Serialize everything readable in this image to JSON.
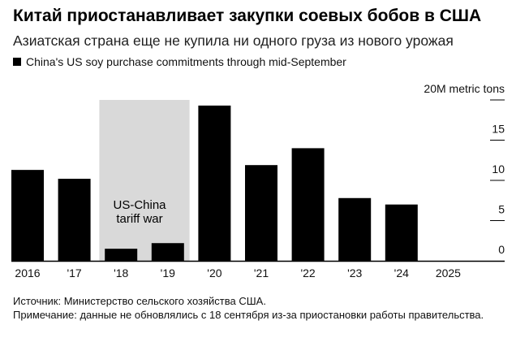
{
  "header": {
    "title": "Китай приостанавливает закупки соевых бобов в США",
    "subtitle": "Азиатская страна еще не купила ни одного груза из нового урожая"
  },
  "footer": {
    "source": "Источник: Министерство сельского хозяйства США.",
    "note": "Примечание: данные не обновлялись с 18 сентября из-за приостановки работы правительства."
  },
  "colors": {
    "bar": "#000000",
    "highlight": "#d9d9d9",
    "grid": "#000000"
  },
  "chart_data": {
    "type": "bar",
    "title": "China's US soy purchase commitments through mid-September",
    "legend": [
      "China's US soy purchase commitments through mid-September"
    ],
    "categories": [
      "2016",
      "'17",
      "'18",
      "'19",
      "'20",
      "'21",
      "'22",
      "'23",
      "'24",
      "2025"
    ],
    "values": [
      11.3,
      10.2,
      1.5,
      2.2,
      19.3,
      11.9,
      14.0,
      7.8,
      7.0,
      0
    ],
    "ylim": [
      0,
      20
    ],
    "yticks": [
      0,
      5,
      10,
      15,
      20
    ],
    "ytick_labels": [
      "0",
      "5",
      "10",
      "15",
      "20M metric tons"
    ],
    "ylabel": "",
    "xlabel": "",
    "axis_position": "right",
    "annotation": {
      "text_line1": "US-China",
      "text_line2": "tariff war",
      "span": [
        "'18",
        "'19"
      ]
    }
  }
}
